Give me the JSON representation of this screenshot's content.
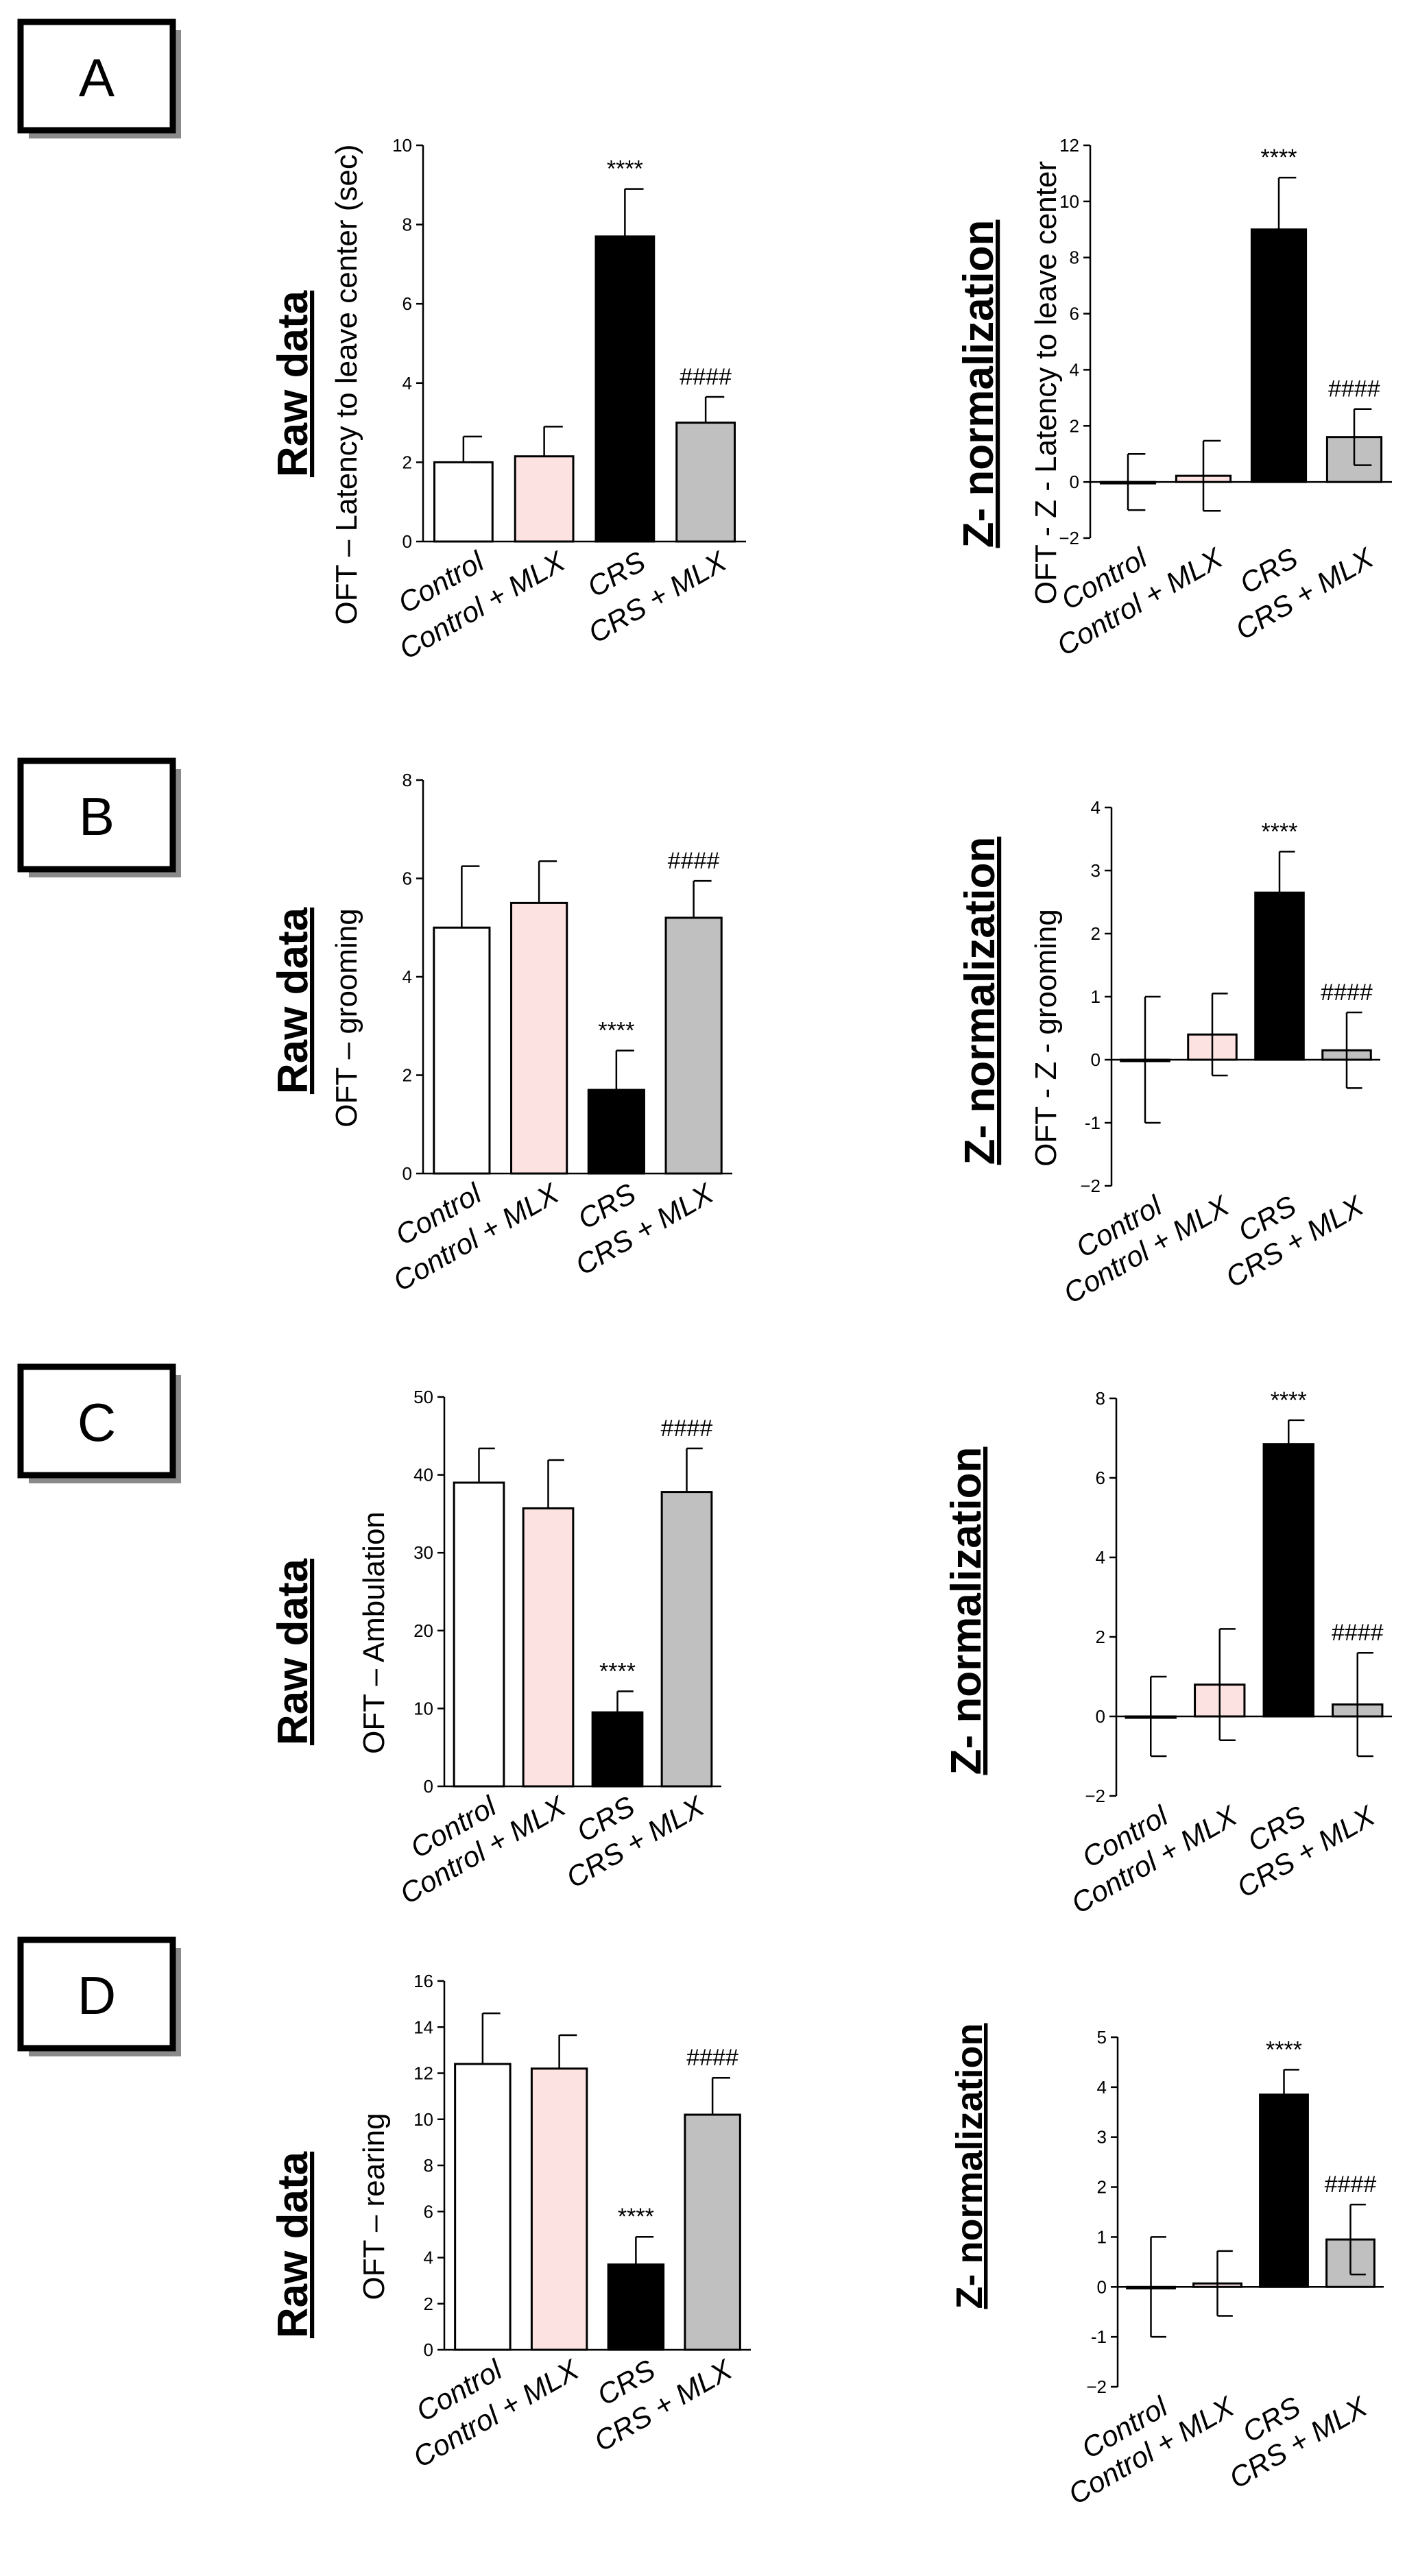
{
  "colors": {
    "Control": "#ffffff",
    "Control + MLX": "#fde2e2",
    "CRS": "#000000",
    "CRS + MLX": "#c0c0c0"
  },
  "panels": [
    {
      "letter": "A",
      "raw_title": "Raw data",
      "norm_title": "Z- normalization"
    },
    {
      "letter": "B",
      "raw_title": "Raw data",
      "norm_title": "Z- normalization"
    },
    {
      "letter": "C",
      "raw_title": "Raw data",
      "norm_title": "Z- normalization"
    },
    {
      "letter": "D",
      "raw_title": "Raw data",
      "norm_title": "Z- normalization"
    }
  ],
  "chart_data": [
    {
      "id": "A-raw",
      "type": "bar",
      "ylabel": "OFT – Latency to leave center (sec)",
      "categories": [
        "Control",
        "Control + MLX",
        "CRS",
        "CRS + MLX"
      ],
      "values": [
        2.0,
        2.15,
        7.7,
        3.0
      ],
      "errors": [
        0.65,
        0.75,
        1.2,
        0.65
      ],
      "ylim": [
        0,
        10
      ],
      "yticks": [
        0,
        2,
        4,
        6,
        8,
        10
      ],
      "ytick_labels": [
        "0",
        "2",
        "4",
        "6",
        "8",
        "10"
      ],
      "annotations": [
        {
          "index": 2,
          "text": "****"
        },
        {
          "index": 3,
          "text": "####"
        }
      ]
    },
    {
      "id": "A-norm",
      "type": "bar",
      "ylabel": "OFT -  Z - Latency to leave center",
      "categories": [
        "Control",
        "Control + MLX",
        "CRS",
        "CRS + MLX"
      ],
      "values": [
        0.0,
        0.22,
        9.0,
        1.6
      ],
      "errors": [
        1.0,
        1.25,
        1.85,
        1.0
      ],
      "ylim": [
        -2,
        12
      ],
      "yticks": [
        -2,
        0,
        2,
        4,
        6,
        8,
        10,
        12
      ],
      "ytick_labels": [
        "−2",
        "0",
        "2",
        "4",
        "6",
        "8",
        "10",
        "12"
      ],
      "annotations": [
        {
          "index": 2,
          "text": "****"
        },
        {
          "index": 3,
          "text": "####"
        }
      ]
    },
    {
      "id": "B-raw",
      "type": "bar",
      "ylabel": "OFT – grooming",
      "categories": [
        "Control",
        "Control + MLX",
        "CRS",
        "CRS + MLX"
      ],
      "values": [
        5.0,
        5.5,
        1.7,
        5.2
      ],
      "errors": [
        1.25,
        0.85,
        0.8,
        0.75
      ],
      "ylim": [
        0,
        8
      ],
      "yticks": [
        0,
        2,
        4,
        6,
        8
      ],
      "ytick_labels": [
        "0",
        "2",
        "4",
        "6",
        "8"
      ],
      "annotations": [
        {
          "index": 2,
          "text": "****"
        },
        {
          "index": 3,
          "text": "####"
        }
      ]
    },
    {
      "id": "B-norm",
      "type": "bar",
      "ylabel": "OFT -  Z - grooming",
      "categories": [
        "Control",
        "Control + MLX",
        "CRS",
        "CRS + MLX"
      ],
      "values": [
        0.0,
        0.4,
        2.65,
        0.15
      ],
      "errors": [
        1.0,
        0.65,
        0.65,
        0.6
      ],
      "ylim": [
        -2,
        4
      ],
      "yticks": [
        -2,
        -1,
        0,
        1,
        2,
        3,
        4
      ],
      "ytick_labels": [
        "−2",
        "-1",
        "0",
        "1",
        "2",
        "3",
        "4"
      ],
      "annotations": [
        {
          "index": 2,
          "text": "****"
        },
        {
          "index": 3,
          "text": "####"
        }
      ]
    },
    {
      "id": "C-raw",
      "type": "bar",
      "ylabel": "OFT – Ambulation",
      "categories": [
        "Control",
        "Control + MLX",
        "CRS",
        "CRS + MLX"
      ],
      "values": [
        39.0,
        35.7,
        9.5,
        37.8
      ],
      "errors": [
        4.4,
        6.2,
        2.7,
        5.6
      ],
      "ylim": [
        0,
        50
      ],
      "yticks": [
        0,
        10,
        20,
        30,
        40,
        50
      ],
      "ytick_labels": [
        "0",
        "10",
        "20",
        "30",
        "40",
        "50"
      ],
      "annotations": [
        {
          "index": 2,
          "text": "****"
        },
        {
          "index": 3,
          "text": "####"
        }
      ]
    },
    {
      "id": "C-norm",
      "type": "bar",
      "ylabel": "",
      "categories": [
        "Control",
        "Control + MLX",
        "CRS",
        "CRS + MLX"
      ],
      "values": [
        0.0,
        0.8,
        6.85,
        0.3
      ],
      "errors": [
        1.0,
        1.4,
        0.6,
        1.3
      ],
      "ylim": [
        -2,
        8
      ],
      "yticks": [
        -2,
        0,
        2,
        4,
        6,
        8
      ],
      "ytick_labels": [
        "−2",
        "0",
        "2",
        "4",
        "6",
        "8"
      ],
      "annotations": [
        {
          "index": 2,
          "text": "****"
        },
        {
          "index": 3,
          "text": "####"
        }
      ]
    },
    {
      "id": "D-raw",
      "type": "bar",
      "ylabel": "OFT – rearing",
      "categories": [
        "Control",
        "Control + MLX",
        "CRS",
        "CRS + MLX"
      ],
      "values": [
        12.4,
        12.2,
        3.7,
        10.2
      ],
      "errors": [
        2.2,
        1.45,
        1.2,
        1.6
      ],
      "ylim": [
        0,
        16
      ],
      "yticks": [
        0,
        2,
        4,
        6,
        8,
        10,
        12,
        14,
        16
      ],
      "ytick_labels": [
        "0",
        "2",
        "4",
        "6",
        "8",
        "10",
        "12",
        "14",
        "16"
      ],
      "annotations": [
        {
          "index": 2,
          "text": "****"
        },
        {
          "index": 3,
          "text": "####"
        }
      ]
    },
    {
      "id": "D-norm",
      "type": "bar",
      "ylabel": "",
      "categories": [
        "Control",
        "Control + MLX",
        "CRS",
        "CRS + MLX"
      ],
      "values": [
        0.0,
        0.07,
        3.85,
        0.95
      ],
      "errors": [
        1.0,
        0.65,
        0.5,
        0.7
      ],
      "ylim": [
        -2,
        5
      ],
      "yticks": [
        -2,
        -1,
        0,
        1,
        2,
        3,
        4,
        5
      ],
      "ytick_labels": [
        "−2",
        "-1",
        "0",
        "1",
        "2",
        "3",
        "4",
        "5"
      ],
      "annotations": [
        {
          "index": 2,
          "text": "****"
        },
        {
          "index": 3,
          "text": "####"
        }
      ]
    }
  ]
}
